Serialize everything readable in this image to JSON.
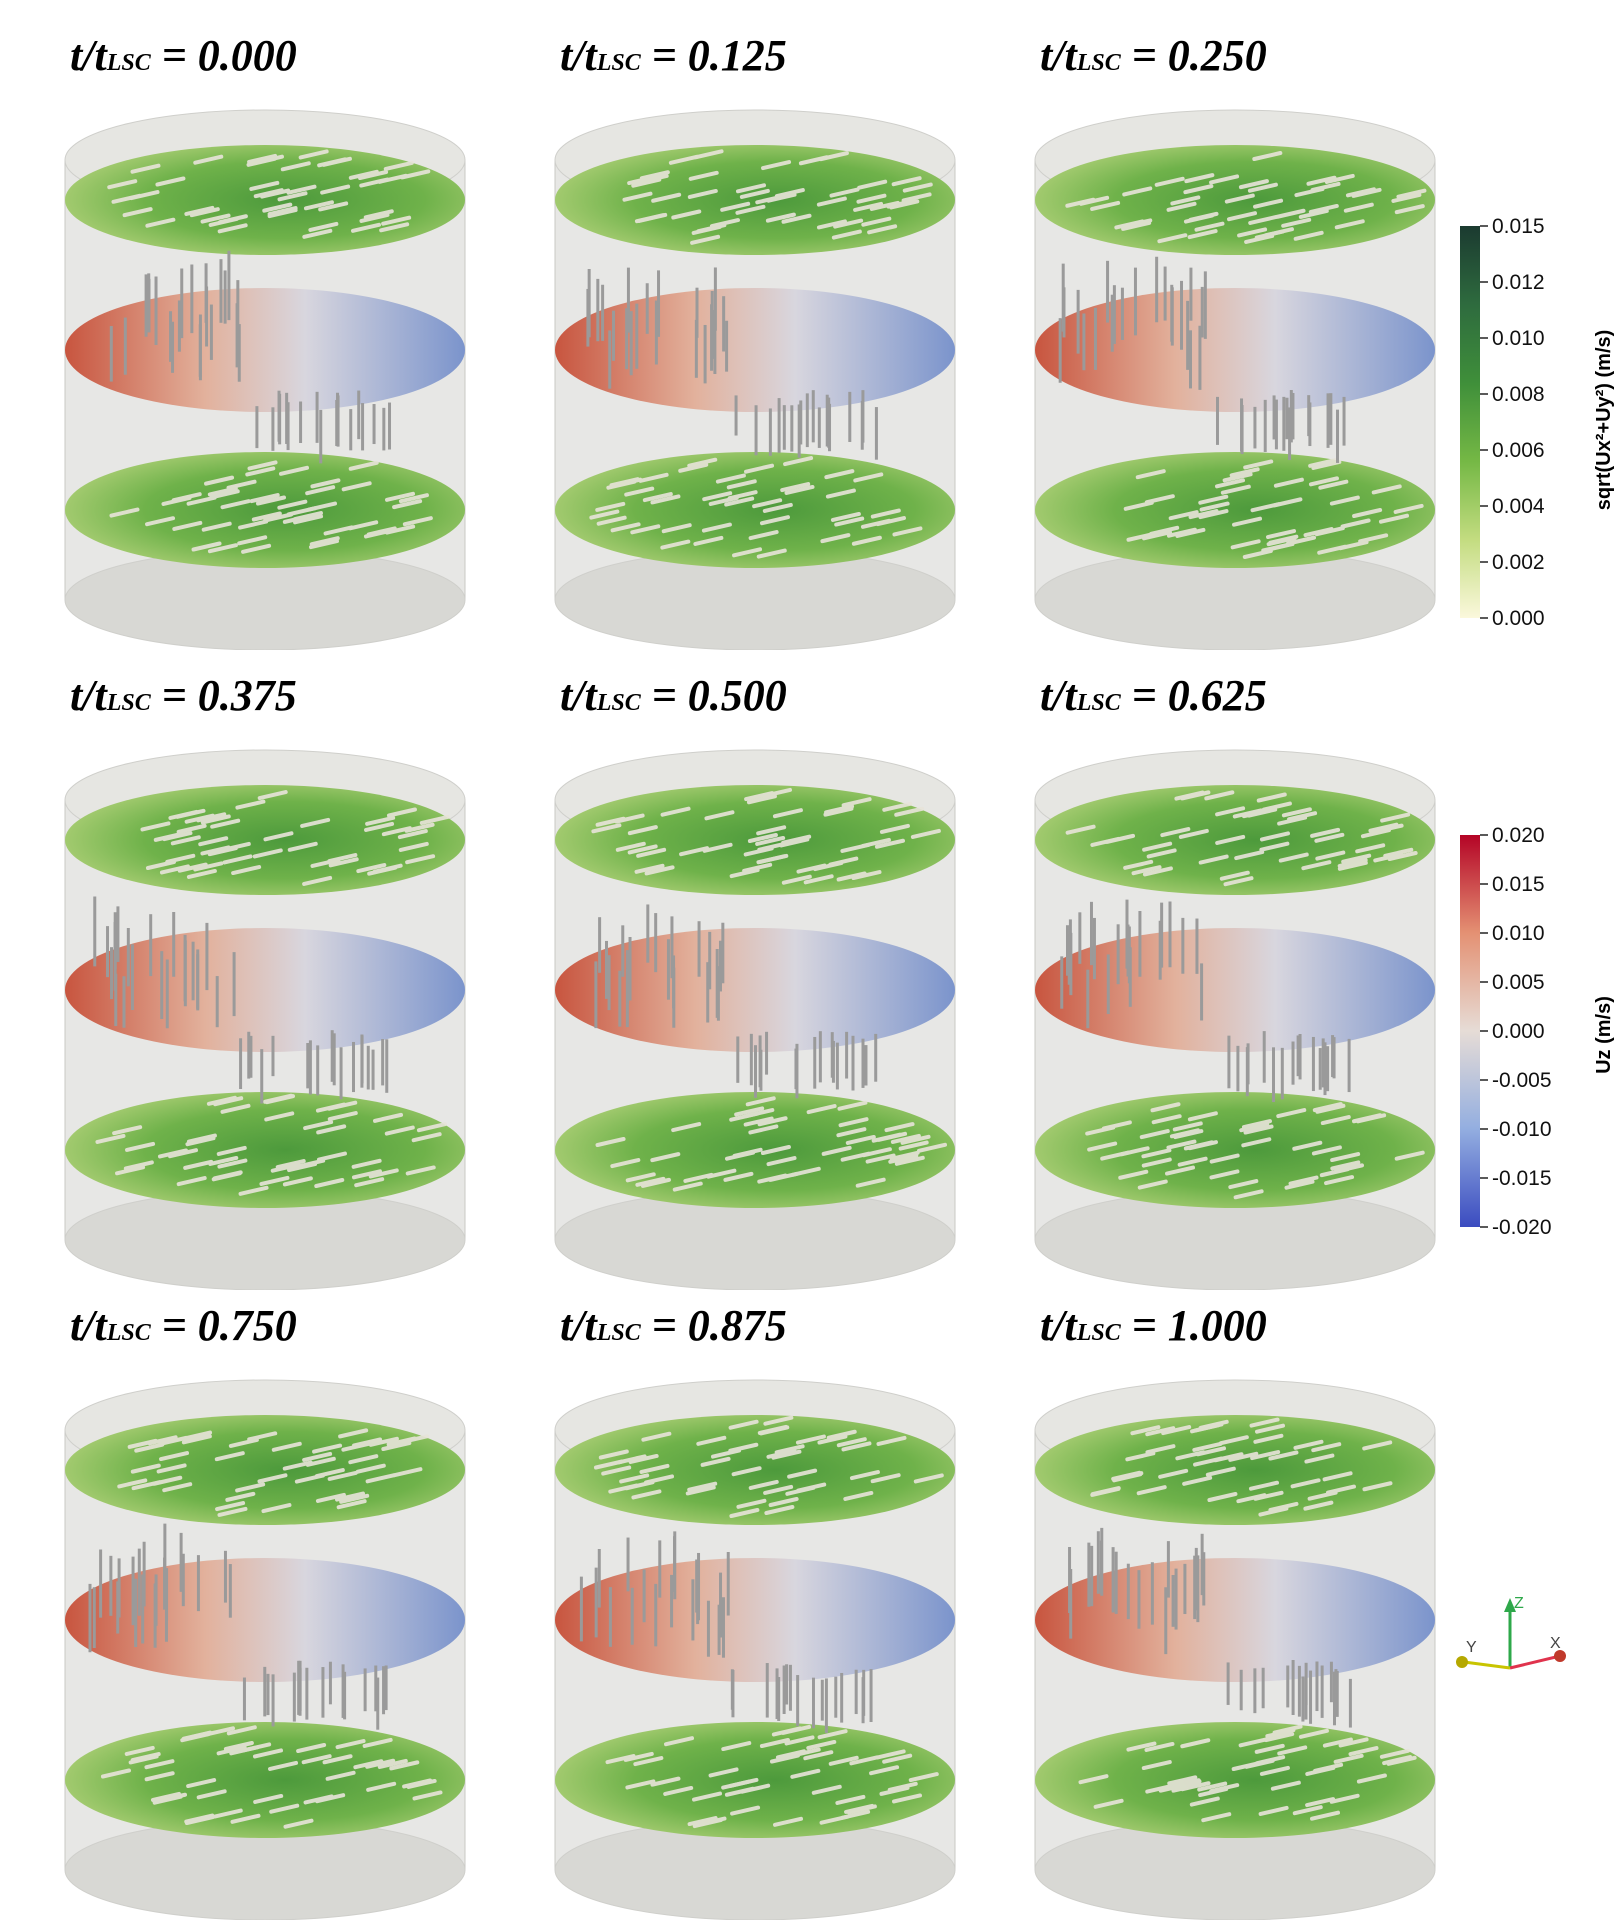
{
  "panels": [
    {
      "label_prefix": "t/t",
      "label_sub": "LSC",
      "label_value": " = 0.000"
    },
    {
      "label_prefix": "t/t",
      "label_sub": "LSC",
      "label_value": " = 0.125"
    },
    {
      "label_prefix": "t/t",
      "label_sub": "LSC",
      "label_value": " = 0.250"
    },
    {
      "label_prefix": "t/t",
      "label_sub": "LSC",
      "label_value": " = 0.375"
    },
    {
      "label_prefix": "t/t",
      "label_sub": "LSC",
      "label_value": " = 0.500"
    },
    {
      "label_prefix": "t/t",
      "label_sub": "LSC",
      "label_value": " = 0.625"
    },
    {
      "label_prefix": "t/t",
      "label_sub": "LSC",
      "label_value": " = 0.750"
    },
    {
      "label_prefix": "t/t",
      "label_sub": "LSC",
      "label_value": " = 0.875"
    },
    {
      "label_prefix": "t/t",
      "label_sub": "LSC",
      "label_value": " = 1.000"
    }
  ],
  "colorbar_horizontal": {
    "title": "sqrt(Ux²+Uy²) (m/s)",
    "ticks": [
      "0.015",
      "0.012",
      "0.010",
      "0.008",
      "0.006",
      "0.004",
      "0.002",
      "0.000"
    ],
    "colors": [
      "#1b3a30",
      "#2e6b3e",
      "#3f8f3a",
      "#5aa83a",
      "#86c04a",
      "#b9d874",
      "#e5ecaa",
      "#fbf8dc"
    ]
  },
  "colorbar_vertical": {
    "title": "Uz (m/s)",
    "ticks": [
      "0.020",
      "0.015",
      "0.010",
      "0.005",
      "0.000",
      "-0.005",
      "-0.010",
      "-0.015",
      "-0.020"
    ],
    "colors": [
      "#b40426",
      "#d6604d",
      "#e8957a",
      "#efc4ad",
      "#e6dcd6",
      "#c6cfe0",
      "#9fb5da",
      "#7393d6",
      "#3b4cc0"
    ]
  },
  "axes": {
    "x": "X",
    "y": "Y",
    "z": "Z"
  }
}
